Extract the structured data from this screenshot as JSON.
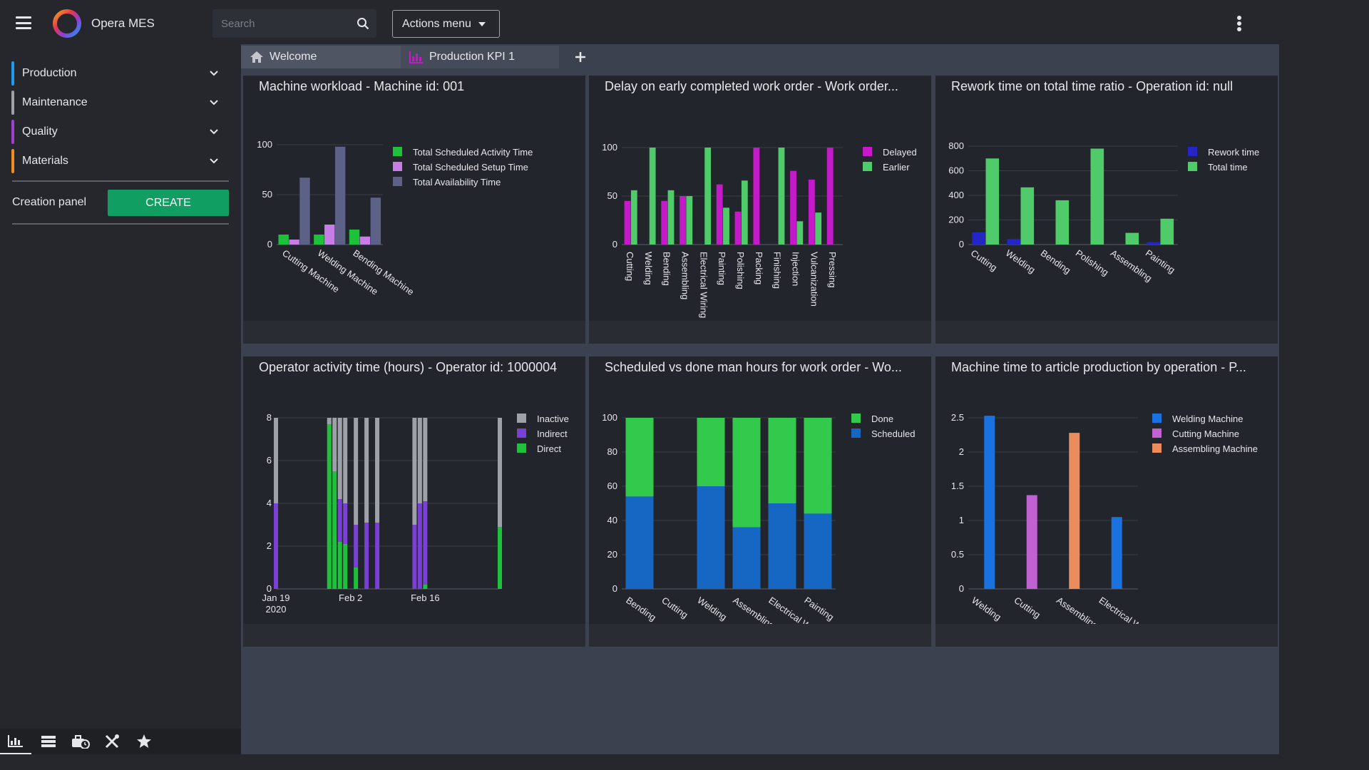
{
  "app": {
    "name": "Opera MES"
  },
  "search": {
    "placeholder": "Search"
  },
  "actions": {
    "label": "Actions menu"
  },
  "sidebar": {
    "items": [
      {
        "label": "Production",
        "color": "#1e9bf0"
      },
      {
        "label": "Maintenance",
        "color": "#9ea1a8"
      },
      {
        "label": "Quality",
        "color": "#a13fcf"
      },
      {
        "label": "Materials",
        "color": "#f28c1c"
      }
    ],
    "creation_label": "Creation panel",
    "create_label": "CREATE"
  },
  "bottom_tools": [
    "chart-icon",
    "list-icon",
    "toolbox-clock-icon",
    "tools-icon",
    "star-icon"
  ],
  "tabs": [
    {
      "label": "Welcome",
      "icon": "home-icon"
    },
    {
      "label": "Production KPI 1",
      "icon": "bar-chart-icon"
    }
  ],
  "colors": {
    "accent": "#109e62",
    "background": "#25272d",
    "panel": "#23252c",
    "workspace": "#3c4150"
  },
  "panels": [
    {
      "title": "Machine workload - Machine id: 001"
    },
    {
      "title": "Delay on early completed work order - Work order..."
    },
    {
      "title": "Rework time on total time ratio - Operation id: null"
    },
    {
      "title": "Operator activity time (hours) - Operator id: 1000004"
    },
    {
      "title": "Scheduled vs done man hours for work order - Wo..."
    },
    {
      "title": "Machine time to article production by operation - P..."
    }
  ],
  "chart_data": [
    {
      "type": "bar",
      "categories": [
        "Cutting Machine",
        "Welding Machine",
        "Bending Machine"
      ],
      "series": [
        {
          "name": "Total Scheduled Activity Time",
          "color": "#1ec13a",
          "values": [
            10,
            10,
            15
          ]
        },
        {
          "name": "Total Scheduled Setup Time",
          "color": "#c77de6",
          "values": [
            5,
            20,
            8
          ]
        },
        {
          "name": "Total Availability Time",
          "color": "#5d6087",
          "values": [
            67,
            98,
            47
          ]
        }
      ],
      "ylim": [
        0,
        100
      ],
      "yticks": [
        0,
        50,
        100
      ],
      "legend": "top-right"
    },
    {
      "type": "bar",
      "categories": [
        "Cutting",
        "Welding",
        "Bending",
        "Assembling",
        "Electrical Wiring",
        "Painting",
        "Polishing",
        "Packing",
        "Finishing",
        "Injection",
        "Vulcanization",
        "Pressing"
      ],
      "series": [
        {
          "name": "Delayed",
          "color": "#c51ac9",
          "values": [
            45,
            0,
            45,
            50,
            0,
            62,
            34,
            100,
            0,
            76,
            67,
            100
          ]
        },
        {
          "name": "Earlier",
          "color": "#4fcb6a",
          "values": [
            56,
            100,
            56,
            50,
            100,
            38,
            66,
            0,
            100,
            24,
            33,
            0
          ]
        }
      ],
      "ylim": [
        0,
        100
      ],
      "yticks": [
        0,
        50,
        100
      ],
      "legend": "top-right"
    },
    {
      "type": "bar",
      "categories": [
        "Cutting",
        "Welding",
        "Bending",
        "Polishing",
        "Assembling",
        "Painting"
      ],
      "series": [
        {
          "name": "Rework time",
          "color": "#2424c7",
          "values": [
            100,
            45,
            0,
            0,
            0,
            20
          ]
        },
        {
          "name": "Total time",
          "color": "#4fcb6a",
          "values": [
            700,
            465,
            360,
            780,
            95,
            210
          ]
        }
      ],
      "ylim": [
        0,
        800
      ],
      "yticks": [
        0,
        200,
        400,
        600,
        800
      ],
      "legend": "top-right"
    },
    {
      "type": "bar",
      "stacked": true,
      "x_tick_labels": [
        {
          "value": 0,
          "label": "Jan 19",
          "sub": "2020"
        },
        {
          "value": 14,
          "label": "Feb 2"
        },
        {
          "value": 28,
          "label": "Feb 16"
        }
      ],
      "x_range": [
        0,
        42
      ],
      "bars": [
        {
          "x": 0,
          "direct": 0,
          "indirect": 4,
          "inactive": 4
        },
        {
          "x": 10,
          "direct": 7.7,
          "indirect": 0,
          "inactive": 0.3
        },
        {
          "x": 11,
          "direct": 5.5,
          "indirect": 0,
          "inactive": 2.5
        },
        {
          "x": 12,
          "direct": 2.2,
          "indirect": 2,
          "inactive": 3.8
        },
        {
          "x": 13,
          "direct": 2.1,
          "indirect": 1.9,
          "inactive": 4
        },
        {
          "x": 15,
          "direct": 1,
          "indirect": 2,
          "inactive": 5
        },
        {
          "x": 17,
          "direct": 0,
          "indirect": 3.1,
          "inactive": 4.9
        },
        {
          "x": 19,
          "direct": 0,
          "indirect": 3.1,
          "inactive": 4.9
        },
        {
          "x": 26,
          "direct": 0,
          "indirect": 3,
          "inactive": 5
        },
        {
          "x": 27,
          "direct": 0,
          "indirect": 4,
          "inactive": 4
        },
        {
          "x": 28,
          "direct": 0.2,
          "indirect": 3.9,
          "inactive": 3.9
        },
        {
          "x": 42,
          "direct": 2.9,
          "indirect": 0,
          "inactive": 5.1
        }
      ],
      "series": [
        {
          "name": "Inactive",
          "color": "#9ea1a8"
        },
        {
          "name": "Indirect",
          "color": "#7a3fd4"
        },
        {
          "name": "Direct",
          "color": "#1ec13a"
        }
      ],
      "ylim": [
        0,
        8
      ],
      "yticks": [
        0,
        2,
        4,
        6,
        8
      ],
      "legend": "top-right"
    },
    {
      "type": "bar",
      "stacked": true,
      "categories": [
        "Bending",
        "Cutting",
        "Welding",
        "Assembling",
        "Electrical Wiring",
        "Painting"
      ],
      "series": [
        {
          "name": "Done",
          "color": "#33c94d",
          "values": [
            46,
            0,
            40,
            64,
            50,
            56
          ]
        },
        {
          "name": "Scheduled",
          "color": "#1667c4",
          "values": [
            54,
            0,
            60,
            36,
            50,
            44
          ]
        }
      ],
      "ylim": [
        0,
        100
      ],
      "yticks": [
        0,
        20,
        40,
        60,
        80,
        100
      ],
      "legend": "top-right"
    },
    {
      "type": "bar",
      "categories": [
        "Welding",
        "Cutting",
        "Assembling",
        "Electrical Wiring"
      ],
      "series": [
        {
          "name": "Welding Machine",
          "color": "#1a72e0",
          "values": [
            2.53,
            0,
            0,
            1.05
          ]
        },
        {
          "name": "Cutting Machine",
          "color": "#c261d1",
          "values": [
            0,
            1.37,
            0,
            0
          ]
        },
        {
          "name": "Assembling Machine",
          "color": "#ec8b5b",
          "values": [
            0,
            0,
            2.28,
            0
          ]
        }
      ],
      "ylim": [
        0,
        2.5
      ],
      "yticks": [
        0,
        0.5,
        1,
        1.5,
        2,
        2.5
      ],
      "legend": "top-right"
    }
  ]
}
